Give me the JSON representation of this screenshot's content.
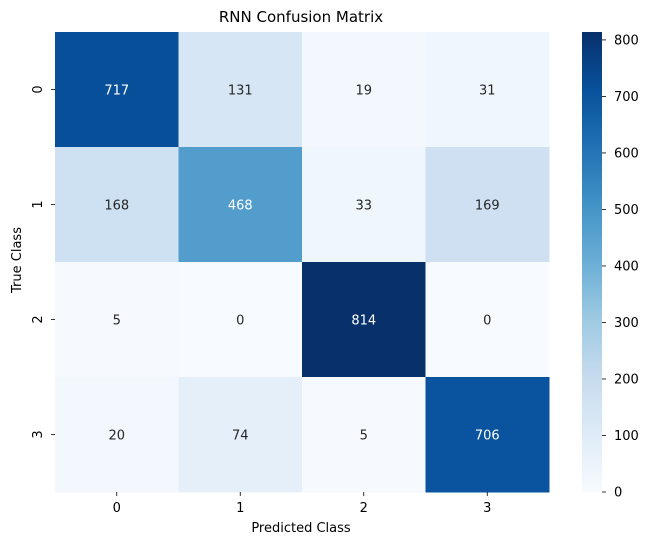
{
  "chart_data": {
    "type": "heatmap",
    "title": "RNN Confusion Matrix",
    "xlabel": "Predicted Class",
    "ylabel": "True Class",
    "x_categories": [
      "0",
      "1",
      "2",
      "3"
    ],
    "y_categories": [
      "0",
      "1",
      "2",
      "3"
    ],
    "values": [
      [
        717,
        131,
        19,
        31
      ],
      [
        168,
        468,
        33,
        169
      ],
      [
        5,
        0,
        814,
        0
      ],
      [
        20,
        74,
        5,
        706
      ]
    ],
    "colormap": "Blues",
    "color_range": [
      0,
      814
    ],
    "colorbar_ticks": [
      0,
      100,
      200,
      300,
      400,
      500,
      600,
      700,
      800
    ],
    "grid": false
  }
}
